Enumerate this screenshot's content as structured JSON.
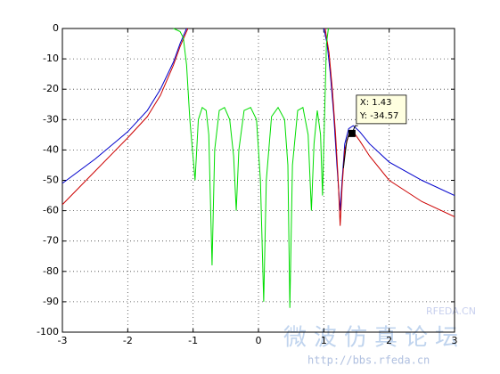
{
  "chart_data": {
    "type": "line",
    "xlim": [
      -3,
      3
    ],
    "xticks": [
      -3,
      -2,
      -1,
      0,
      1,
      2,
      3
    ],
    "ylim": [
      -100,
      0
    ],
    "yticks": [
      0,
      -10,
      -20,
      -30,
      -40,
      -50,
      -60,
      -70,
      -80,
      -90,
      -100
    ],
    "grid": true,
    "series": [
      {
        "color": "#0000cc",
        "x": [
          -3,
          -2.5,
          -2,
          -1.7,
          -1.5,
          -1.3,
          -1.2,
          -1.1,
          0,
          1.0,
          1.05,
          1.1,
          1.15,
          1.2,
          1.25,
          1.28,
          1.32,
          1.38,
          1.45,
          1.55,
          1.7,
          2,
          2.5,
          3
        ],
        "values": [
          -51,
          -43,
          -34,
          -27,
          -20,
          -11,
          -5,
          0,
          null,
          0,
          -5,
          -15,
          -28,
          -45,
          -60,
          -50,
          -38,
          -33,
          -32,
          -34,
          -38,
          -44,
          -50,
          -55
        ]
      },
      {
        "color": "#cc0000",
        "x": [
          -3,
          -2.5,
          -2,
          -1.7,
          -1.5,
          -1.3,
          -1.2,
          -1.08,
          0,
          1.02,
          1.08,
          1.13,
          1.18,
          1.22,
          1.25,
          1.28,
          1.32,
          1.38,
          1.45,
          1.55,
          1.7,
          2,
          2.5,
          3
        ],
        "values": [
          -58,
          -47,
          -36,
          -29,
          -22,
          -12,
          -6,
          0,
          null,
          0,
          -8,
          -20,
          -35,
          -50,
          -65,
          -52,
          -40,
          -35,
          -34,
          -37,
          -42,
          -50,
          -57,
          -62
        ]
      },
      {
        "color": "#00dd00",
        "x": [
          -1.3,
          -1.2,
          -1.15,
          -1.1,
          -1.05,
          -0.97,
          -0.92,
          -0.86,
          -0.8,
          -0.76,
          -0.71,
          -0.67,
          -0.6,
          -0.52,
          -0.44,
          -0.38,
          -0.34,
          -0.3,
          -0.22,
          -0.12,
          -0.03,
          0.03,
          0.08,
          0.12,
          0.2,
          0.3,
          0.4,
          0.45,
          0.48,
          0.52,
          0.6,
          0.68,
          0.76,
          0.81,
          0.85,
          0.9,
          0.95,
          0.98,
          1.01,
          1.04,
          1.07
        ],
        "values": [
          0,
          -1,
          -3,
          -12,
          -30,
          -50,
          -30,
          -26,
          -27,
          -35,
          -78,
          -40,
          -27,
          -26,
          -30,
          -42,
          -60,
          -40,
          -27,
          -26,
          -30,
          -50,
          -90,
          -50,
          -29,
          -26,
          -30,
          -45,
          -92,
          -45,
          -27,
          -26,
          -35,
          -60,
          -38,
          -27,
          -35,
          -55,
          -30,
          -5,
          0
        ]
      },
      {
        "color": "#000000",
        "x": [
          1.3,
          1.35,
          1.4,
          1.43,
          1.48,
          1.52
        ],
        "values": [
          -46,
          -37,
          -34,
          -34.57,
          -32,
          -32
        ]
      }
    ],
    "annotation": {
      "x": 1.43,
      "y": -34.57,
      "x_label": "X: 1.43",
      "y_label": "Y: -34.57"
    },
    "watermark": {
      "brand": "RFEDA.CN",
      "site_name": "微波仿真论坛",
      "url": "http://bbs.rfeda.cn"
    }
  }
}
